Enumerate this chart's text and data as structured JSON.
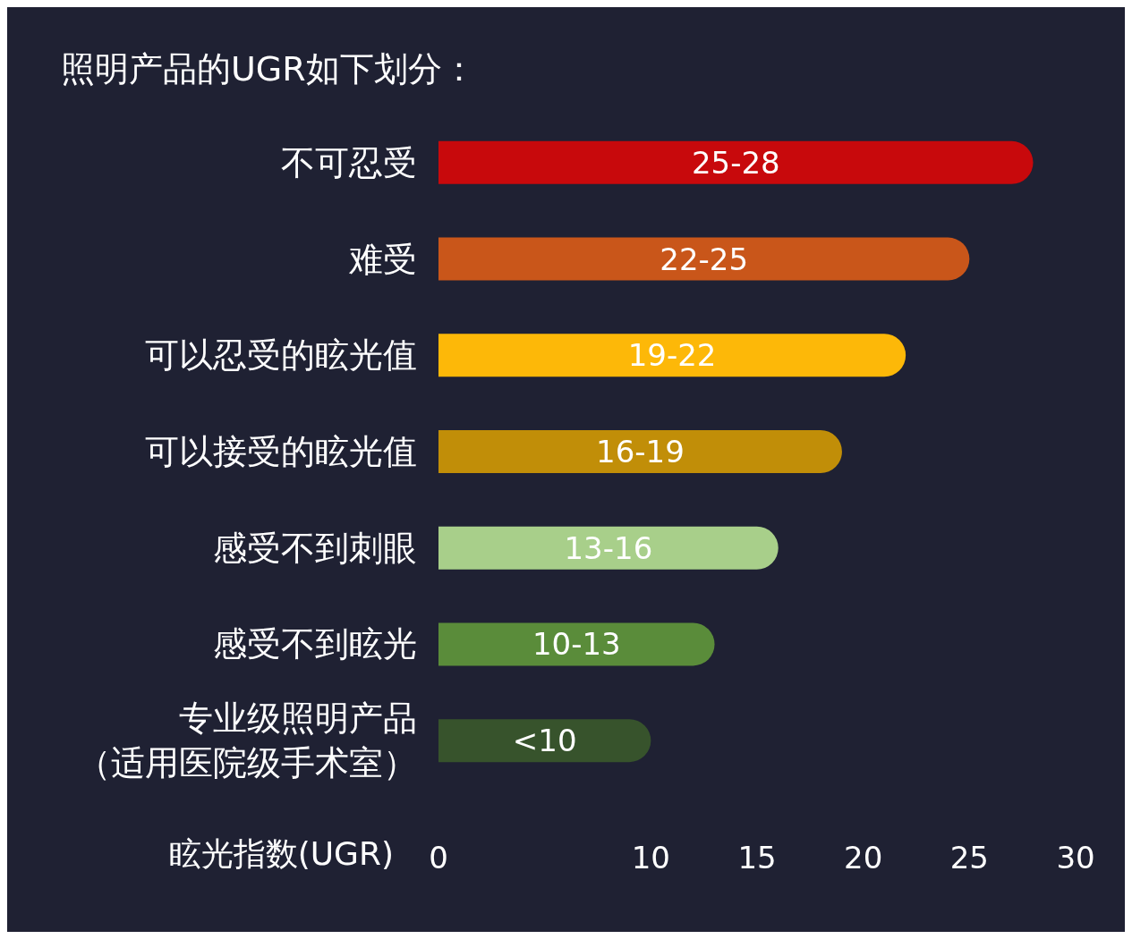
{
  "chart_data": {
    "type": "bar",
    "orientation": "horizontal",
    "title": "照明产品的UGR如下划分：",
    "xlabel": "眩光指数(UGR)",
    "categories": [
      "不可忍受",
      "难受",
      "可以忍受的眩光值",
      "可以接受的眩光值",
      "感受不到刺眼",
      "感受不到眩光",
      "专业级照明产品（适用医院级手术室）"
    ],
    "values": [
      28,
      25,
      22,
      19,
      16,
      13,
      10
    ],
    "value_labels": [
      "25-28",
      "22-25",
      "19-22",
      "16-19",
      "13-16",
      "10-13",
      "<10"
    ],
    "colors": [
      "#c8090c",
      "#c9561a",
      "#fdb808",
      "#c18e08",
      "#a8cf8a",
      "#5a8c3a",
      "#37532c"
    ],
    "xlim": [
      0,
      30
    ],
    "xticks": [
      0,
      10,
      15,
      20,
      25,
      30
    ],
    "grid": false
  }
}
